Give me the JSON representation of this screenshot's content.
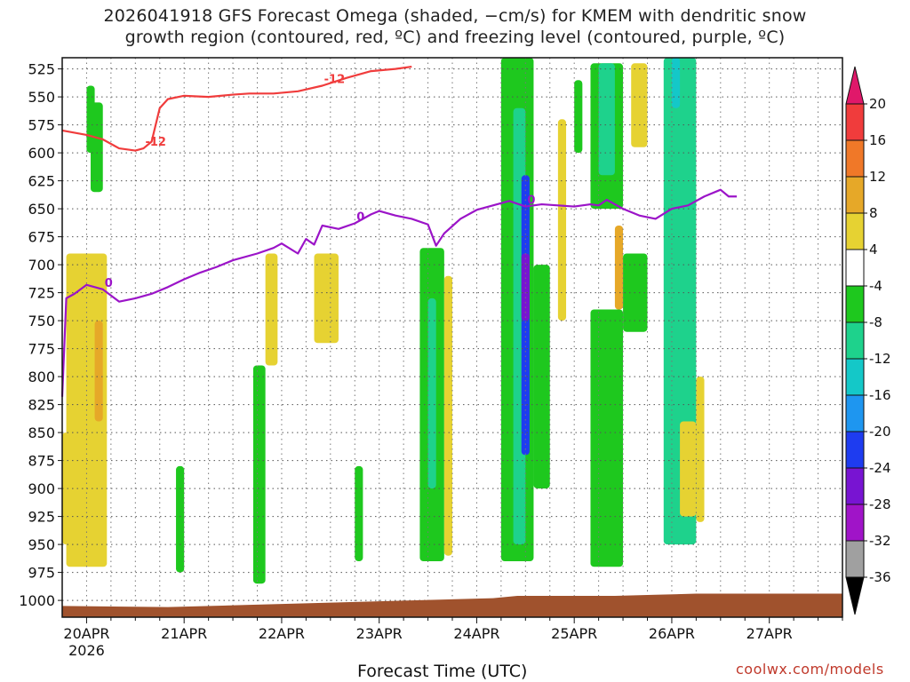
{
  "title": {
    "line1": "2026041918 GFS Forecast Omega (shaded, −cm/s) for KMEM with dendritic snow",
    "line2": "growth region (contoured, red, ºC) and freezing level (contoured, purple, ºC)"
  },
  "watermark": "coolwx.com/models",
  "chart_data": {
    "type": "heatmap",
    "title": "2026041918 GFS Forecast Omega (shaded, −cm/s) for KMEM with dendritic snow growth region (contoured, red, ºC) and freezing level (contoured, purple, ºC)",
    "xlabel": "Forecast Time (UTC)",
    "ylabel": "",
    "x_ticks": [
      "20APR",
      "21APR",
      "22APR",
      "23APR",
      "24APR",
      "25APR",
      "26APR",
      "27APR"
    ],
    "x_tick_sub": "2026",
    "x_range_hours": [
      -6,
      186
    ],
    "y_ticks": [
      525,
      550,
      575,
      600,
      625,
      650,
      675,
      700,
      725,
      750,
      775,
      800,
      825,
      850,
      875,
      900,
      925,
      950,
      975,
      1000
    ],
    "y_range_hpa": [
      515,
      1015
    ],
    "grid": true,
    "colorbar": {
      "labels": [
        "20",
        "16",
        "12",
        "8",
        "4",
        "-4",
        "-8",
        "-12",
        "-16",
        "-20",
        "-24",
        "-28",
        "-32",
        "-36"
      ],
      "colors": [
        "#e0186a",
        "#f03c3c",
        "#f07828",
        "#e6a828",
        "#e6d232",
        "#ffffff",
        "#1ec81e",
        "#1ed28c",
        "#14c8c8",
        "#1e96f0",
        "#1e3cf0",
        "#7814d2",
        "#a014c8",
        "#a0a0a0",
        "#000000"
      ]
    },
    "series": [
      {
        "name": "-12",
        "color": "#f03c3c",
        "points": [
          [
            -6,
            580
          ],
          [
            0,
            584
          ],
          [
            4,
            588
          ],
          [
            6,
            592
          ],
          [
            8,
            596
          ],
          [
            12,
            598
          ],
          [
            14,
            596
          ],
          [
            16,
            590
          ],
          [
            18,
            560
          ],
          [
            20,
            552
          ],
          [
            24,
            549
          ],
          [
            30,
            550
          ],
          [
            36,
            548
          ],
          [
            40,
            547
          ],
          [
            46,
            547
          ],
          [
            52,
            545
          ],
          [
            58,
            540
          ],
          [
            64,
            533
          ],
          [
            70,
            527
          ],
          [
            76,
            525
          ],
          [
            80,
            523
          ]
        ]
      },
      {
        "name": "0",
        "color": "#9b14c8",
        "points": [
          [
            -6,
            818
          ],
          [
            -5,
            730
          ],
          [
            -3,
            726
          ],
          [
            0,
            718
          ],
          [
            4,
            722
          ],
          [
            8,
            733
          ],
          [
            12,
            730
          ],
          [
            16,
            726
          ],
          [
            20,
            720
          ],
          [
            24,
            713
          ],
          [
            28,
            707
          ],
          [
            32,
            702
          ],
          [
            36,
            696
          ],
          [
            42,
            690
          ],
          [
            46,
            685
          ],
          [
            48,
            681
          ],
          [
            52,
            690
          ],
          [
            54,
            677
          ],
          [
            56,
            682
          ],
          [
            58,
            665
          ],
          [
            62,
            668
          ],
          [
            66,
            663
          ],
          [
            70,
            655
          ],
          [
            72,
            652
          ],
          [
            76,
            656
          ],
          [
            80,
            659
          ],
          [
            84,
            664
          ],
          [
            86,
            683
          ],
          [
            88,
            672
          ],
          [
            92,
            659
          ],
          [
            96,
            651
          ],
          [
            100,
            647
          ],
          [
            104,
            643
          ],
          [
            108,
            648
          ],
          [
            112,
            646
          ],
          [
            116,
            647
          ],
          [
            120,
            648
          ],
          [
            124,
            646
          ],
          [
            126,
            647
          ],
          [
            128,
            642
          ],
          [
            132,
            650
          ],
          [
            136,
            656
          ],
          [
            140,
            659
          ],
          [
            144,
            650
          ],
          [
            148,
            647
          ],
          [
            152,
            639
          ],
          [
            156,
            633
          ],
          [
            158,
            639
          ],
          [
            160,
            639
          ]
        ]
      }
    ],
    "omega_regions": [
      {
        "value": -8,
        "t": [
          0,
          2
        ],
        "p": [
          540,
          600
        ]
      },
      {
        "value": -8,
        "t": [
          1,
          4
        ],
        "p": [
          555,
          635
        ]
      },
      {
        "value": 4,
        "t": [
          -6,
          -4
        ],
        "p": [
          850,
          950
        ]
      },
      {
        "value": 4,
        "t": [
          -5,
          5
        ],
        "p": [
          690,
          970
        ]
      },
      {
        "value": 8,
        "t": [
          2,
          4
        ],
        "p": [
          750,
          840
        ]
      },
      {
        "value": -8,
        "t": [
          22,
          24
        ],
        "p": [
          880,
          975
        ]
      },
      {
        "value": -8,
        "t": [
          41,
          44
        ],
        "p": [
          790,
          985
        ]
      },
      {
        "value": 4,
        "t": [
          44,
          47
        ],
        "p": [
          690,
          790
        ]
      },
      {
        "value": 4,
        "t": [
          56,
          62
        ],
        "p": [
          690,
          770
        ]
      },
      {
        "value": -8,
        "t": [
          66,
          68
        ],
        "p": [
          880,
          965
        ]
      },
      {
        "value": -8,
        "t": [
          82,
          88
        ],
        "p": [
          685,
          965
        ]
      },
      {
        "value": -12,
        "t": [
          84,
          86
        ],
        "p": [
          730,
          900
        ]
      },
      {
        "value": 4,
        "t": [
          88,
          90
        ],
        "p": [
          710,
          960
        ]
      },
      {
        "value": -8,
        "t": [
          102,
          110
        ],
        "p": [
          515,
          965
        ]
      },
      {
        "value": -12,
        "t": [
          105,
          108
        ],
        "p": [
          560,
          950
        ]
      },
      {
        "value": -24,
        "t": [
          107,
          109
        ],
        "p": [
          620,
          870
        ]
      },
      {
        "value": -28,
        "t": [
          107,
          109
        ],
        "p": [
          690,
          750
        ]
      },
      {
        "value": -8,
        "t": [
          110,
          114
        ],
        "p": [
          700,
          900
        ]
      },
      {
        "value": 4,
        "t": [
          116,
          118
        ],
        "p": [
          570,
          750
        ]
      },
      {
        "value": -8,
        "t": [
          120,
          122
        ],
        "p": [
          535,
          600
        ]
      },
      {
        "value": -8,
        "t": [
          124,
          132
        ],
        "p": [
          520,
          650
        ]
      },
      {
        "value": -12,
        "t": [
          126,
          130
        ],
        "p": [
          520,
          620
        ]
      },
      {
        "value": 4,
        "t": [
          134,
          138
        ],
        "p": [
          520,
          595
        ]
      },
      {
        "value": -8,
        "t": [
          124,
          132
        ],
        "p": [
          740,
          970
        ]
      },
      {
        "value": 8,
        "t": [
          130,
          132
        ],
        "p": [
          665,
          740
        ]
      },
      {
        "value": -8,
        "t": [
          132,
          138
        ],
        "p": [
          690,
          760
        ]
      },
      {
        "value": -12,
        "t": [
          142,
          150
        ],
        "p": [
          515,
          950
        ]
      },
      {
        "value": -16,
        "t": [
          144,
          146
        ],
        "p": [
          515,
          560
        ]
      },
      {
        "value": 4,
        "t": [
          146,
          150
        ],
        "p": [
          840,
          925
        ]
      },
      {
        "value": 4,
        "t": [
          150,
          152
        ],
        "p": [
          800,
          930
        ]
      }
    ],
    "terrain_color": "#a0522d"
  }
}
